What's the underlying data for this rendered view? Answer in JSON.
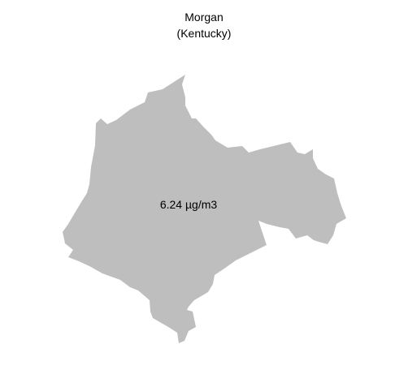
{
  "map": {
    "title": "Morgan",
    "subtitle": "(Kentucky)",
    "region_name": "Morgan",
    "state": "Kentucky",
    "value_label": "6.24 µg/m3",
    "value": 6.24,
    "unit": "µg/m3",
    "fill_color": "#bebebe",
    "background_color": "#ffffff",
    "text_color": "#000000"
  }
}
